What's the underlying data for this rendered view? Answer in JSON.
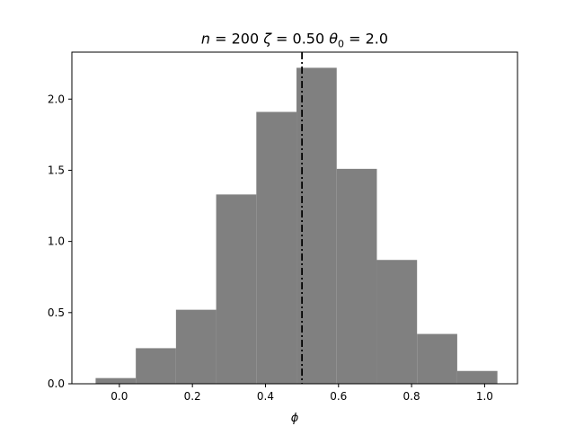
{
  "chart_data": {
    "type": "bar",
    "subtype": "histogram",
    "title_parts": {
      "n_sym": "n",
      "n_eq": " = 200 ",
      "zeta_sym": "ζ",
      "zeta_eq": " = 0.50 ",
      "theta_sym": "θ",
      "theta_sub": "0",
      "theta_eq": " = 2.0"
    },
    "xlabel": "ϕ",
    "ylabel": "",
    "xlim": [
      -0.13,
      1.09
    ],
    "ylim": [
      0,
      2.33
    ],
    "xticks": [
      "0.0",
      "0.2",
      "0.4",
      "0.6",
      "0.8",
      "1.0"
    ],
    "yticks": [
      "0.0",
      "0.5",
      "1.0",
      "1.5",
      "2.0"
    ],
    "bin_edges": [
      -0.065,
      0.045,
      0.155,
      0.265,
      0.375,
      0.485,
      0.595,
      0.705,
      0.815,
      0.925,
      1.035
    ],
    "values": [
      0.04,
      0.25,
      0.52,
      1.33,
      1.91,
      2.22,
      1.51,
      0.87,
      0.35,
      0.09
    ],
    "bar_color": "#808080",
    "reference_line": {
      "x": 0.5,
      "style": "dash-dot",
      "color": "#000000"
    },
    "grid": false,
    "legend": "none"
  }
}
